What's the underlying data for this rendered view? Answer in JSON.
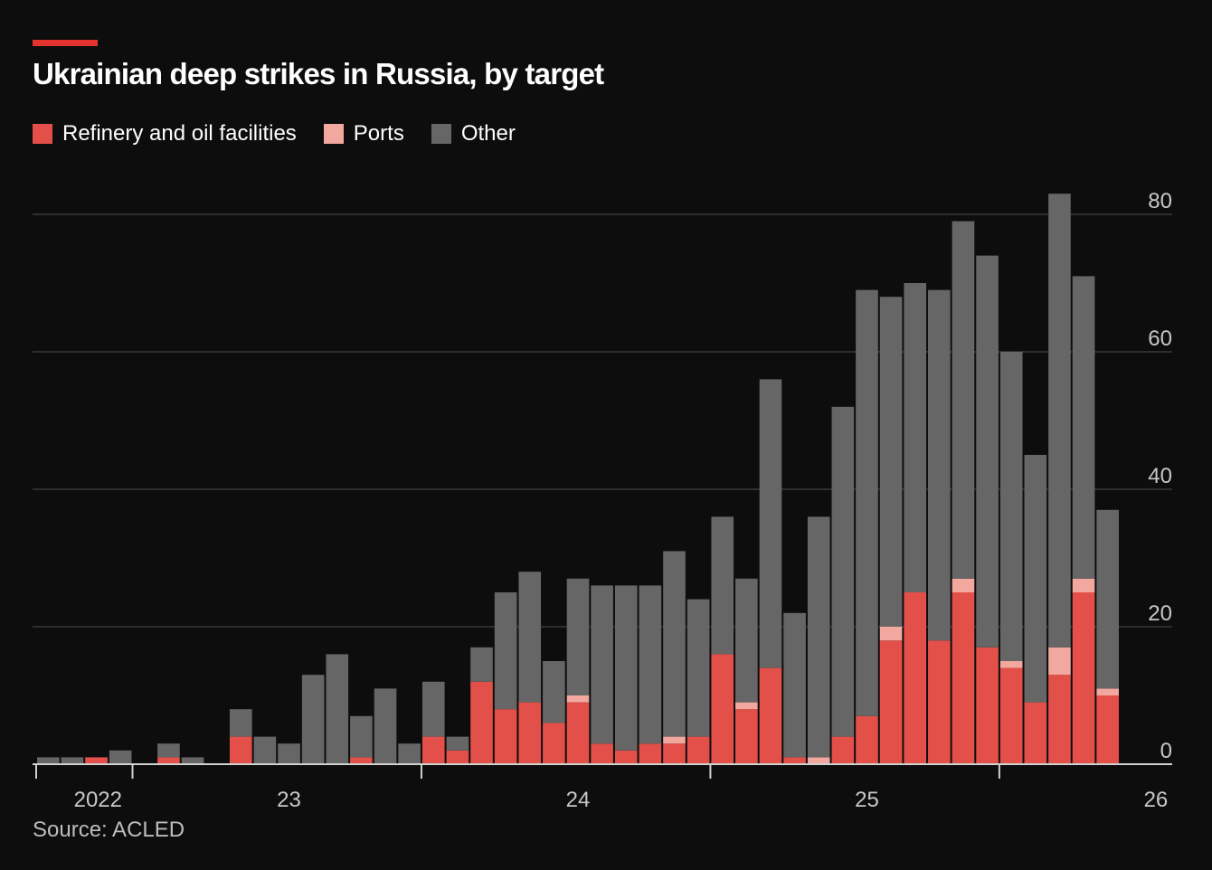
{
  "header": {
    "title": "Ukrainian deep strikes in Russia, by target"
  },
  "footer": {
    "source": "Source: ACLED"
  },
  "colors": {
    "refinery": "#e3504a",
    "ports": "#f2a89e",
    "other": "#666666",
    "accent": "#e3342f",
    "gridline": "#3a3a3a",
    "background": "#0d0d0d"
  },
  "chart_data": {
    "type": "bar",
    "stacked": true,
    "title": "Ukrainian deep strikes in Russia, by target",
    "xlabel": "",
    "ylabel": "",
    "ylim": [
      0,
      80
    ],
    "yticks": [
      0,
      20,
      40,
      60,
      80
    ],
    "y_axis_position": "right",
    "grid": true,
    "legend_position": "top-left",
    "x_tick_labels": [
      {
        "label": "2022",
        "index": 0.0
      },
      {
        "label": "23",
        "index": 10.0
      },
      {
        "label": "24",
        "index": 22.0
      },
      {
        "label": "25",
        "index": 34.0
      },
      {
        "label": "26",
        "index": 46.0
      }
    ],
    "x_year_ticks": [
      -0.5,
      3.5,
      15.5,
      27.5,
      39.5
    ],
    "series": [
      {
        "name": "Refinery and oil facilities",
        "values": [
          0,
          0,
          1,
          0,
          0,
          1,
          0,
          0,
          4,
          0,
          0,
          0,
          0,
          1,
          0,
          0,
          4,
          2,
          12,
          8,
          9,
          6,
          9,
          3,
          2,
          3,
          3,
          4,
          16,
          8,
          14,
          1,
          0,
          4,
          7,
          18,
          25,
          18,
          25,
          17,
          14,
          9,
          13,
          25,
          10
        ]
      },
      {
        "name": "Ports",
        "values": [
          0,
          0,
          0,
          0,
          0,
          0,
          0,
          0,
          0,
          0,
          0,
          0,
          0,
          0,
          0,
          0,
          0,
          0,
          0,
          0,
          0,
          0,
          1,
          0,
          0,
          0,
          1,
          0,
          0,
          1,
          0,
          0,
          1,
          0,
          0,
          2,
          0,
          0,
          2,
          0,
          1,
          0,
          4,
          2,
          1
        ]
      },
      {
        "name": "Other",
        "values": [
          1,
          1,
          0,
          2,
          0,
          2,
          1,
          0,
          4,
          4,
          3,
          13,
          16,
          6,
          11,
          3,
          8,
          2,
          5,
          17,
          19,
          9,
          17,
          23,
          24,
          23,
          27,
          20,
          20,
          18,
          42,
          21,
          35,
          48,
          62,
          48,
          45,
          51,
          52,
          57,
          45,
          36,
          66,
          44,
          26
        ]
      }
    ]
  }
}
